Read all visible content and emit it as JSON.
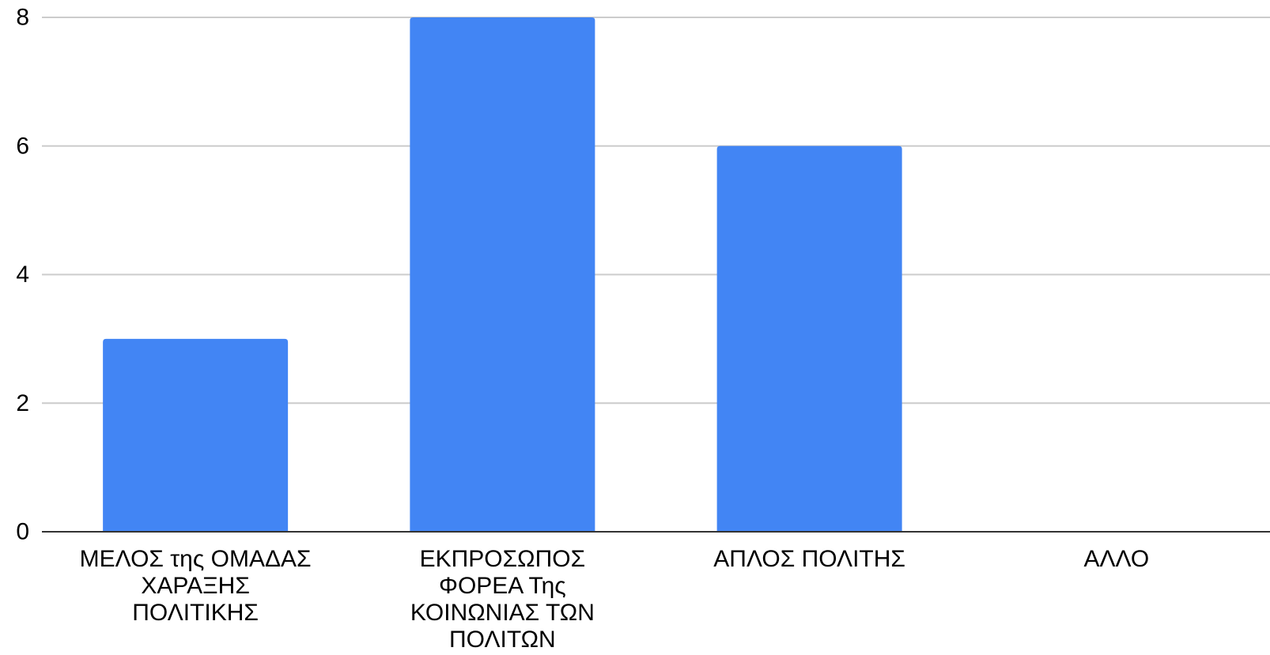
{
  "chart_data": {
    "type": "bar",
    "categories": [
      [
        "ΜΕΛΟΣ της ΟΜΑΔΑΣ",
        "ΧΑΡΑΞΗΣ",
        "ΠΟΛΙΤΙΚΗΣ"
      ],
      [
        "ΕΚΠΡΟΣΩΠΟΣ",
        "ΦΟΡΕΑ Της",
        "ΚΟΙΝΩΝΙΑΣ ΤΩΝ",
        "ΠΟΛΙΤΩΝ"
      ],
      [
        "ΑΠΛΟΣ ΠΟΛΙΤΗΣ"
      ],
      [
        "ΑΛΛΟ"
      ]
    ],
    "values": [
      3,
      8,
      6,
      0
    ],
    "ylim": [
      0,
      8
    ],
    "yticks": [
      "0",
      "2",
      "4",
      "6",
      "8"
    ],
    "grid": true,
    "bar_color": "#4285f4",
    "grid_color": "#cccccc",
    "axis_color": "#333333"
  }
}
